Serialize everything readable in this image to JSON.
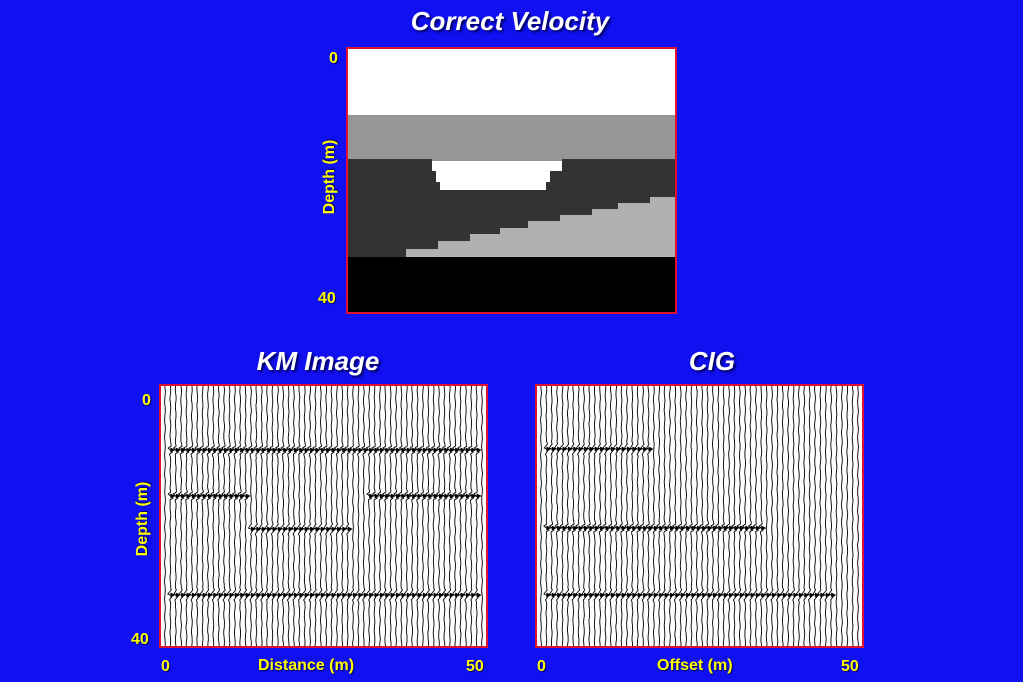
{
  "top": {
    "title": "Correct Velocity",
    "ylabel": "Depth (m)",
    "ytick_top": "0",
    "ytick_bottom": "40"
  },
  "km": {
    "title": "KM Image",
    "ylabel": "Depth (m)",
    "ytick_top": "0",
    "ytick_bottom": "40",
    "xlabel": "Distance (m)",
    "xtick_left": "0",
    "xtick_right": "50"
  },
  "cig": {
    "title": "CIG",
    "xlabel": "Offset (m)",
    "xtick_left": "0",
    "xtick_right": "50"
  },
  "colors": {
    "background": "#1010f0",
    "frame": "#e01030",
    "label": "#ffff00",
    "title": "#ffffff",
    "layer_1": "#ffffff",
    "layer_2": "#969696",
    "layer_3": "#333333",
    "layer_4": "#b0b0b0",
    "layer_5": "#000000"
  }
}
